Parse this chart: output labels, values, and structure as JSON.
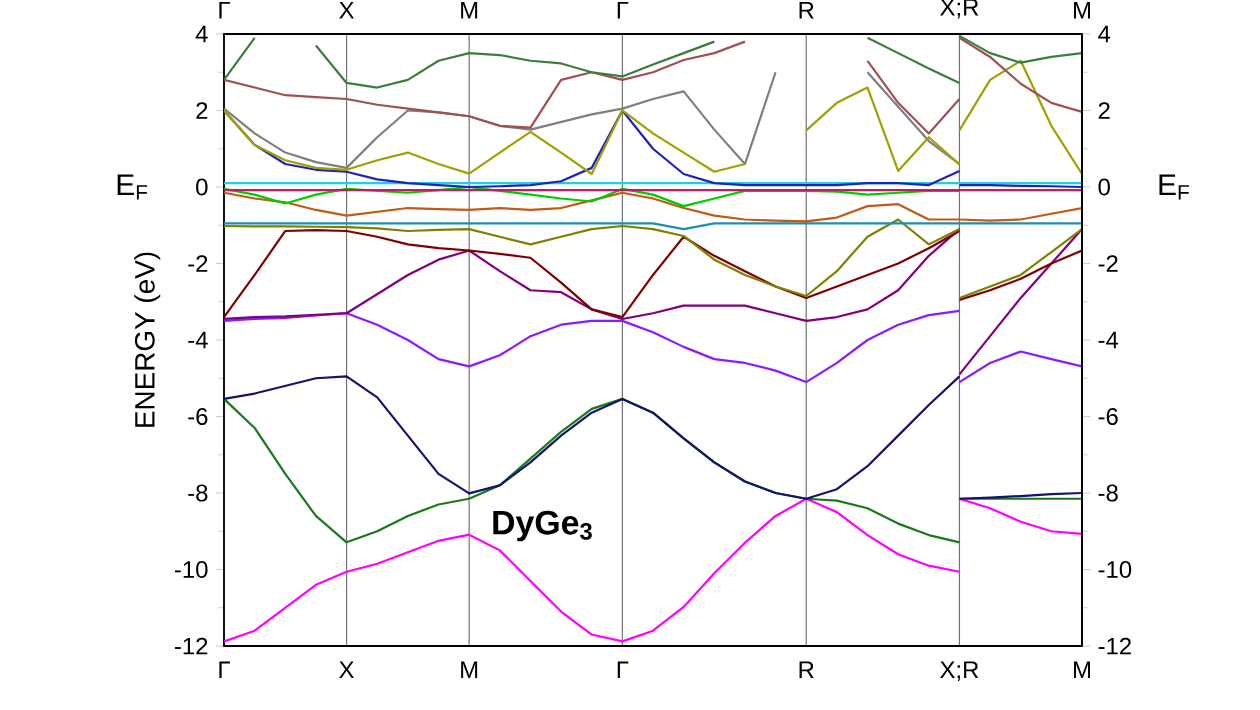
{
  "chart_data": {
    "type": "line",
    "ylabel": "ENERGY (eV)",
    "annotations": [
      "E$_{F}$",
      "E$_{F}$",
      "DyGe$_{3}$"
    ],
    "categories": [
      "Γ",
      null,
      null,
      null,
      "X",
      null,
      null,
      null,
      "M",
      null,
      null,
      null,
      null,
      "Γ",
      null,
      null,
      null,
      null,
      null,
      "R",
      null,
      null,
      null,
      null,
      "X;R",
      null,
      null,
      null,
      "M"
    ],
    "ylim": [
      -12,
      4
    ],
    "y2lim": [
      -12,
      4
    ],
    "yticks": [
      -12,
      -10,
      -8,
      -6,
      -4,
      -2,
      0,
      2,
      4
    ],
    "y2ticks": [
      -12,
      -10,
      -8,
      -6,
      -4,
      -2,
      0,
      2,
      4
    ],
    "grid": "x",
    "series": [
      {
        "color": "#ff00ff",
        "values": [
          -11.88,
          -11.6,
          -11.0,
          -10.4,
          -10.06,
          -9.85,
          -9.55,
          -9.25,
          -9.09,
          -9.5,
          -10.3,
          -11.1,
          -11.7,
          -11.88,
          -11.6,
          -10.98,
          -10.1,
          -9.3,
          -8.6,
          -8.15,
          -8.5,
          -9.1,
          -9.6,
          -9.9,
          -10.06,
          null,
          null,
          null,
          null
        ]
      },
      {
        "color": "#ff00ff",
        "values": [
          null,
          null,
          null,
          null,
          null,
          null,
          null,
          null,
          null,
          null,
          null,
          null,
          null,
          null,
          null,
          null,
          null,
          null,
          null,
          null,
          null,
          null,
          null,
          null,
          -8.15,
          -8.4,
          -8.75,
          -9.0,
          -9.07
        ]
      },
      {
        "color": "#1a7a1a",
        "values": [
          -5.54,
          -6.3,
          -7.5,
          -8.6,
          -9.29,
          -9.0,
          -8.6,
          -8.3,
          -8.15,
          -7.8,
          -7.1,
          -6.4,
          -5.8,
          -5.54,
          -5.9,
          -6.57,
          -7.2,
          -7.7,
          -8.0,
          -8.15,
          -8.2,
          -8.4,
          -8.8,
          -9.1,
          -9.29,
          null,
          null,
          null,
          null
        ]
      },
      {
        "color": "#1a7a1a",
        "values": [
          null,
          null,
          null,
          null,
          null,
          null,
          null,
          null,
          null,
          null,
          null,
          null,
          null,
          null,
          null,
          null,
          null,
          null,
          null,
          null,
          null,
          null,
          null,
          null,
          -8.15,
          -8.15,
          -8.15,
          -8.15,
          -8.15
        ]
      },
      {
        "color": "#14146e",
        "values": [
          -5.54,
          -5.4,
          -5.2,
          -5.0,
          -4.95,
          -5.5,
          -6.5,
          -7.5,
          -8.01,
          -7.8,
          -7.2,
          -6.5,
          -5.9,
          -5.54,
          -5.9,
          -6.57,
          -7.2,
          -7.7,
          -8.0,
          -8.15,
          -7.9,
          -7.3,
          -6.5,
          -5.7,
          -4.95,
          null,
          null,
          null,
          null
        ]
      },
      {
        "color": "#14146e",
        "values": [
          null,
          null,
          null,
          null,
          null,
          null,
          null,
          null,
          null,
          null,
          null,
          null,
          null,
          null,
          null,
          null,
          null,
          null,
          null,
          null,
          null,
          null,
          null,
          null,
          -8.15,
          -8.12,
          -8.08,
          -8.03,
          -8.0
        ]
      },
      {
        "color": "#8a1aff",
        "values": [
          -3.5,
          -3.45,
          -3.42,
          -3.36,
          -3.3,
          -3.6,
          -4.0,
          -4.5,
          -4.69,
          -4.4,
          -3.9,
          -3.6,
          -3.5,
          -3.5,
          -3.8,
          -4.18,
          -4.5,
          -4.6,
          -4.8,
          -5.1,
          -4.6,
          -4.0,
          -3.6,
          -3.35,
          -3.24,
          null,
          null,
          null,
          null
        ]
      },
      {
        "color": "#8a1aff",
        "values": [
          null,
          null,
          null,
          null,
          null,
          null,
          null,
          null,
          null,
          null,
          null,
          null,
          null,
          null,
          null,
          null,
          null,
          null,
          null,
          null,
          null,
          null,
          null,
          null,
          -5.1,
          -4.6,
          -4.3,
          -4.5,
          -4.69
        ]
      },
      {
        "color": "#800080",
        "values": [
          -3.45,
          -3.4,
          -3.38,
          -3.34,
          -3.3,
          -2.8,
          -2.3,
          -1.9,
          -1.66,
          -2.2,
          -2.7,
          -2.75,
          -3.2,
          -3.45,
          -3.3,
          -3.1,
          -3.1,
          -3.1,
          -3.3,
          -3.5,
          -3.4,
          -3.2,
          -2.7,
          -1.8,
          -1.1,
          null,
          null,
          null,
          null
        ]
      },
      {
        "color": "#800080",
        "values": [
          null,
          null,
          null,
          null,
          null,
          null,
          null,
          null,
          null,
          null,
          null,
          null,
          null,
          null,
          null,
          null,
          null,
          null,
          null,
          null,
          null,
          null,
          null,
          null,
          -4.9,
          -3.9,
          -2.9,
          -2.0,
          -1.1
        ]
      },
      {
        "color": "#800000",
        "values": [
          -3.4,
          -2.3,
          -1.15,
          -1.13,
          -1.15,
          -1.3,
          -1.5,
          -1.6,
          -1.66,
          -1.75,
          -1.85,
          -2.5,
          -3.2,
          -3.4,
          -2.3,
          -1.3,
          -1.8,
          -2.2,
          -2.6,
          -2.9,
          -2.6,
          -2.3,
          -2.0,
          -1.6,
          -1.15,
          null,
          null,
          null,
          null
        ]
      },
      {
        "color": "#800000",
        "values": [
          null,
          null,
          null,
          null,
          null,
          null,
          null,
          null,
          null,
          null,
          null,
          null,
          null,
          null,
          null,
          null,
          null,
          null,
          null,
          null,
          null,
          null,
          null,
          null,
          -2.95,
          -2.7,
          -2.4,
          -2.0,
          -1.66
        ]
      },
      {
        "color": "#808000",
        "values": [
          -1.02,
          -1.03,
          -1.03,
          -1.04,
          -1.05,
          -1.08,
          -1.15,
          -1.12,
          -1.1,
          -1.3,
          -1.5,
          -1.3,
          -1.1,
          -1.02,
          -1.1,
          -1.28,
          -1.9,
          -2.3,
          -2.6,
          -2.85,
          -2.2,
          -1.3,
          -0.85,
          -1.5,
          -1.1,
          null,
          null,
          null,
          null
        ]
      },
      {
        "color": "#808000",
        "values": [
          null,
          null,
          null,
          null,
          null,
          null,
          null,
          null,
          null,
          null,
          null,
          null,
          null,
          null,
          null,
          null,
          null,
          null,
          null,
          null,
          null,
          null,
          null,
          null,
          -2.9,
          -2.6,
          -2.3,
          -1.7,
          -1.1
        ]
      },
      {
        "color": "#1a8fb0",
        "values": [
          -0.95,
          -0.95,
          -0.95,
          -0.95,
          -0.95,
          -0.95,
          -0.95,
          -0.95,
          -0.95,
          -0.95,
          -0.95,
          -0.95,
          -0.95,
          -0.95,
          -0.95,
          -1.1,
          -0.95,
          -0.95,
          -0.95,
          -0.95,
          -0.95,
          -0.95,
          -0.95,
          -0.95,
          -0.95,
          -0.95,
          -0.95,
          -0.95,
          -0.95
        ]
      },
      {
        "color": "#c05a14",
        "values": [
          -0.15,
          -0.3,
          -0.4,
          -0.6,
          -0.75,
          -0.65,
          -0.55,
          -0.58,
          -0.6,
          -0.55,
          -0.6,
          -0.55,
          -0.35,
          -0.15,
          -0.3,
          -0.55,
          -0.75,
          -0.85,
          -0.88,
          -0.9,
          -0.8,
          -0.5,
          -0.45,
          -0.85,
          -0.85,
          -0.88,
          -0.85,
          -0.7,
          -0.55
        ]
      },
      {
        "color": "#00cc00",
        "values": [
          -0.05,
          -0.2,
          -0.43,
          -0.2,
          -0.05,
          -0.1,
          -0.15,
          -0.08,
          0.0,
          -0.1,
          -0.2,
          -0.3,
          -0.38,
          -0.05,
          -0.2,
          -0.5,
          -0.3,
          -0.1,
          -0.1,
          -0.1,
          -0.12,
          -0.2,
          -0.15,
          -0.1,
          -0.1,
          null,
          null,
          null,
          null
        ]
      },
      {
        "color": "#c01a6a",
        "values": [
          -0.08,
          -0.08,
          -0.08,
          -0.08,
          -0.08,
          -0.08,
          -0.08,
          -0.08,
          -0.08,
          -0.08,
          -0.08,
          -0.08,
          -0.08,
          -0.08,
          -0.08,
          -0.08,
          -0.08,
          -0.08,
          -0.08,
          -0.08,
          -0.08,
          -0.08,
          -0.08,
          -0.08,
          -0.08,
          -0.08,
          -0.08,
          -0.08,
          -0.08
        ]
      },
      {
        "color": "#20d0e0",
        "values": [
          0.1,
          0.1,
          0.1,
          0.1,
          0.1,
          0.1,
          0.1,
          0.1,
          0.1,
          0.1,
          0.1,
          0.1,
          0.1,
          0.1,
          0.1,
          0.1,
          0.1,
          0.1,
          0.1,
          0.1,
          0.1,
          0.1,
          0.1,
          0.1,
          0.1,
          0.1,
          0.1,
          0.1,
          0.1
        ]
      },
      {
        "color": "#2020c0",
        "values": [
          2.0,
          1.1,
          0.6,
          0.45,
          0.4,
          0.2,
          0.1,
          0.05,
          0.0,
          0.02,
          0.05,
          0.15,
          0.5,
          2.0,
          1.0,
          0.34,
          0.1,
          0.05,
          0.05,
          0.05,
          0.05,
          0.1,
          0.1,
          0.05,
          0.42,
          null,
          null,
          null,
          null
        ]
      },
      {
        "color": "#2020c0",
        "values": [
          null,
          null,
          null,
          null,
          null,
          null,
          null,
          null,
          null,
          null,
          null,
          null,
          null,
          null,
          null,
          null,
          null,
          null,
          null,
          null,
          null,
          null,
          null,
          null,
          0.05,
          0.05,
          0.03,
          0.02,
          0.0
        ]
      },
      {
        "color": "#7f7f7f",
        "values": [
          2.05,
          1.4,
          0.9,
          0.65,
          0.5,
          1.3,
          2.0,
          1.95,
          1.85,
          1.6,
          1.5,
          1.7,
          1.9,
          2.05,
          2.3,
          2.5,
          1.5,
          0.6,
          3.0,
          null,
          null,
          3.0,
          2.1,
          1.2,
          0.6,
          null,
          null,
          null,
          null
        ]
      },
      {
        "color": "#a0a000",
        "values": [
          2.0,
          1.1,
          0.7,
          0.5,
          0.45,
          0.7,
          0.9,
          0.6,
          0.35,
          0.9,
          1.44,
          0.9,
          0.34,
          2.0,
          1.4,
          0.9,
          0.4,
          0.6,
          null,
          1.48,
          2.2,
          2.6,
          0.42,
          1.3,
          0.59,
          null,
          null,
          null,
          null
        ]
      },
      {
        "color": "#a0a000",
        "values": [
          null,
          null,
          null,
          null,
          null,
          null,
          null,
          null,
          null,
          null,
          null,
          null,
          null,
          null,
          null,
          null,
          null,
          null,
          null,
          null,
          null,
          null,
          null,
          null,
          1.48,
          2.8,
          3.3,
          1.6,
          0.34
        ]
      },
      {
        "color": "#a05050",
        "values": [
          2.8,
          2.6,
          2.4,
          2.35,
          2.3,
          2.15,
          2.05,
          1.95,
          1.85,
          1.6,
          1.55,
          2.8,
          3.0,
          2.8,
          3.0,
          3.32,
          3.5,
          3.8,
          null,
          null,
          null,
          3.3,
          2.2,
          1.4,
          2.3,
          null,
          null,
          null,
          null
        ]
      },
      {
        "color": "#a05050",
        "values": [
          null,
          null,
          null,
          null,
          null,
          null,
          null,
          null,
          null,
          null,
          null,
          null,
          null,
          null,
          null,
          null,
          null,
          null,
          null,
          null,
          null,
          null,
          null,
          null,
          3.9,
          3.4,
          2.7,
          2.2,
          1.96
        ]
      },
      {
        "color": "#3c7c3c",
        "values": [
          2.8,
          3.9,
          null,
          3.7,
          2.72,
          2.6,
          2.8,
          3.3,
          3.5,
          3.45,
          3.3,
          3.23,
          3.0,
          2.89,
          3.2,
          3.5,
          3.8,
          null,
          null,
          null,
          null,
          3.9,
          3.5,
          3.1,
          2.72,
          null,
          null,
          null,
          null
        ]
      },
      {
        "color": "#3c7c3c",
        "values": [
          null,
          null,
          null,
          null,
          null,
          null,
          null,
          null,
          null,
          null,
          null,
          null,
          null,
          null,
          null,
          null,
          null,
          null,
          null,
          null,
          null,
          null,
          null,
          null,
          3.95,
          3.5,
          3.25,
          3.4,
          3.5
        ]
      }
    ]
  }
}
